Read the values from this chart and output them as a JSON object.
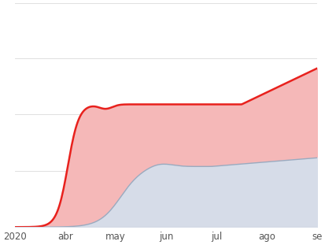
{
  "background_color": "#ffffff",
  "x_tick_labels": [
    "2020",
    "abr",
    "may",
    "jun",
    "jul",
    "ago",
    "se"
  ],
  "x_tick_positions": [
    0.0,
    0.167,
    0.333,
    0.5,
    0.667,
    0.833,
    1.0
  ],
  "grid_color": "#e0e0e0",
  "red_line_color": "#e8211d",
  "red_fill_color": "#f5b8b8",
  "blue_fill_color": "#d6dce8",
  "blue_line_color": "#9aaabf",
  "n_points": 300,
  "ylim_max": 1.55
}
